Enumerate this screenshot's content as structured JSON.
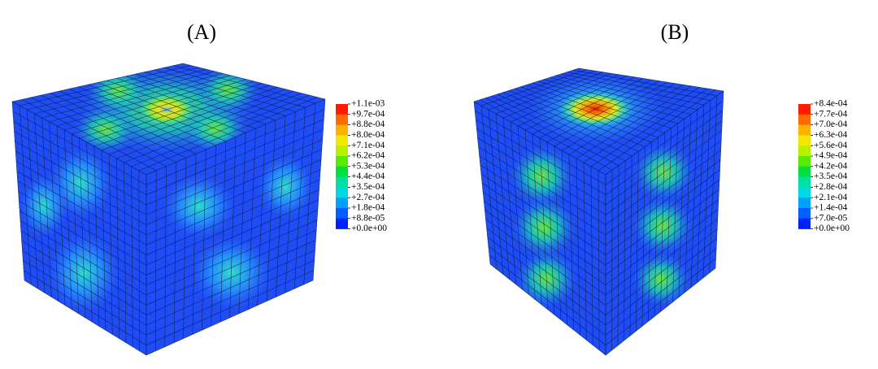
{
  "panels": [
    {
      "label": "(A)",
      "legend": {
        "labels": [
          "+1.1e-03",
          "+9.7e-04",
          "+8.8e-04",
          "+8.0e-04",
          "+7.1e-04",
          "+6.2e-04",
          "+5.3e-04",
          "+4.4e-04",
          "+3.5e-04",
          "+2.7e-04",
          "+1.8e-04",
          "+8.8e-05",
          "+0.0e+00"
        ]
      }
    },
    {
      "label": "(B)",
      "legend": {
        "labels": [
          "+8.4e-04",
          "+7.7e-04",
          "+7.0e-04",
          "+6.3e-04",
          "+5.6e-04",
          "+4.9e-04",
          "+4.2e-04",
          "+3.5e-04",
          "+2.8e-04",
          "+2.1e-04",
          "+1.4e-04",
          "+7.0e-05",
          "+0.0e+00"
        ]
      }
    }
  ]
}
